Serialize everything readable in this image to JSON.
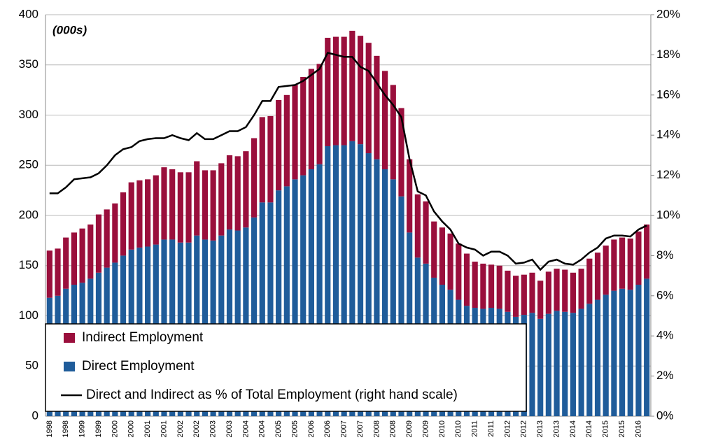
{
  "chart_data": {
    "type": "stacked-bar-line",
    "annotation": "(000s)",
    "categories": [
      "1998",
      null,
      "1998",
      null,
      "1999",
      null,
      "1999",
      null,
      "2000",
      null,
      "2000",
      null,
      "2001",
      null,
      "2001",
      null,
      "2002",
      null,
      "2002",
      null,
      "2003",
      null,
      "2003",
      null,
      "2004",
      null,
      "2004",
      null,
      "2005",
      null,
      "2005",
      null,
      "2006",
      null,
      "2006",
      null,
      "2007",
      null,
      "2007",
      null,
      "2008",
      null,
      "2008",
      null,
      "2009",
      null,
      "2009",
      null,
      "2010",
      null,
      "2010",
      null,
      "2011",
      null,
      "2011",
      null,
      "2012",
      null,
      "2012",
      null,
      "2013",
      null,
      "2013",
      null,
      "2014",
      null,
      "2014",
      null,
      "2015",
      null,
      "2015",
      null,
      "2016",
      null
    ],
    "series": [
      {
        "name": "Direct Employment",
        "color": "#1f5c9a",
        "values": [
          118,
          120,
          127,
          131,
          133,
          137,
          143,
          148,
          153,
          160,
          166,
          168,
          169,
          171,
          176,
          176,
          173,
          173,
          180,
          176,
          175,
          180,
          186,
          185,
          188,
          198,
          213,
          213,
          225,
          229,
          236,
          240,
          246,
          251,
          269,
          270,
          270,
          274,
          271,
          262,
          256,
          246,
          236,
          219,
          183,
          158,
          152,
          138,
          131,
          126,
          116,
          110,
          108,
          107,
          108,
          107,
          104,
          99,
          101,
          103,
          97,
          102,
          105,
          104,
          103,
          107,
          112,
          116,
          121,
          125,
          127,
          126,
          131,
          137
        ]
      },
      {
        "name": "Indirect Employment",
        "color": "#9a0f3c",
        "values": [
          47,
          47,
          51,
          52,
          54,
          54,
          58,
          58,
          59,
          63,
          67,
          67,
          67,
          69,
          72,
          70,
          70,
          70,
          74,
          69,
          70,
          72,
          74,
          74,
          76,
          79,
          85,
          86,
          90,
          91,
          94,
          98,
          100,
          100,
          108,
          108,
          108,
          110,
          108,
          110,
          103,
          98,
          94,
          88,
          73,
          63,
          62,
          56,
          57,
          56,
          56,
          52,
          46,
          45,
          43,
          43,
          41,
          41,
          40,
          40,
          38,
          42,
          42,
          42,
          40,
          40,
          45,
          47,
          49,
          51,
          51,
          51,
          53,
          54
        ]
      },
      {
        "name": "Direct and Indirect as % of Total Employment (right hand scale)",
        "color": "#000000",
        "axis": "y2",
        "values": [
          11.1,
          11.1,
          11.4,
          11.8,
          11.85,
          11.9,
          12.1,
          12.5,
          13.0,
          13.3,
          13.4,
          13.7,
          13.8,
          13.85,
          13.85,
          14.0,
          13.85,
          13.75,
          14.1,
          13.8,
          13.8,
          14.0,
          14.2,
          14.2,
          14.4,
          15.0,
          15.7,
          15.7,
          16.4,
          16.45,
          16.5,
          16.7,
          17.0,
          17.3,
          18.1,
          18.0,
          17.9,
          17.9,
          17.4,
          17.2,
          16.6,
          16.0,
          15.5,
          14.9,
          12.8,
          11.2,
          11.0,
          10.2,
          9.7,
          9.3,
          8.6,
          8.4,
          8.3,
          8.0,
          8.2,
          8.2,
          8.0,
          7.6,
          7.65,
          7.8,
          7.3,
          7.7,
          7.8,
          7.6,
          7.55,
          7.8,
          8.15,
          8.4,
          8.85,
          9.0,
          9.0,
          8.95,
          9.3,
          9.5
        ]
      }
    ],
    "ylim": [
      0,
      400
    ],
    "yticks": [
      0,
      50,
      100,
      150,
      200,
      250,
      300,
      350,
      400
    ],
    "y2lim": [
      0,
      20
    ],
    "y2ticks": [
      {
        "value": 0,
        "label": "0%"
      },
      {
        "value": 2,
        "label": "2%"
      },
      {
        "value": 4,
        "label": "4%"
      },
      {
        "value": 6,
        "label": "6%"
      },
      {
        "value": 8,
        "label": "8%"
      },
      {
        "value": 10,
        "label": "10%"
      },
      {
        "value": 12,
        "label": "12%"
      },
      {
        "value": 14,
        "label": "14%"
      },
      {
        "value": 16,
        "label": "16%"
      },
      {
        "value": 18,
        "label": "18%"
      },
      {
        "value": 20,
        "label": "20%"
      }
    ],
    "grid": true,
    "legend": "lower left"
  }
}
